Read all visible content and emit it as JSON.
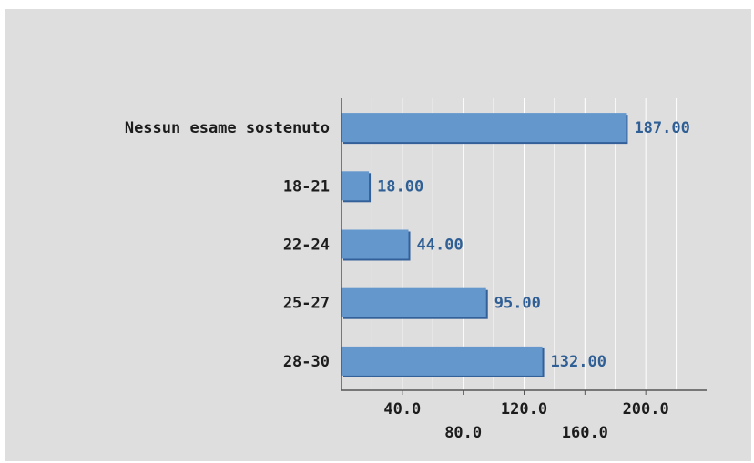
{
  "colors": {
    "background": "#dedede",
    "bar_fill": "#6497cc",
    "bar_shadow": "#34609a",
    "value_label": "#2f5f95",
    "gridline": "#ffffff",
    "axis": "#555555"
  },
  "chart_data": {
    "type": "bar",
    "orientation": "horizontal",
    "title": "",
    "xlabel": "",
    "ylabel": "",
    "categories": [
      "Nessun esame sostenuto",
      "18-21",
      "22-24",
      "25-27",
      "28-30"
    ],
    "values": [
      187,
      18,
      44,
      95,
      132
    ],
    "value_labels": [
      "187.00",
      "18.00",
      "44.00",
      "95.00",
      "132.00"
    ],
    "xlim": [
      0,
      240
    ],
    "x_ticks": [
      20,
      40,
      60,
      80,
      100,
      120,
      140,
      160,
      180,
      200,
      220
    ],
    "x_tick_labels": [
      {
        "value": 40,
        "label": "40.0",
        "row": 0
      },
      {
        "value": 80,
        "label": "80.0",
        "row": 1
      },
      {
        "value": 120,
        "label": "120.0",
        "row": 0
      },
      {
        "value": 160,
        "label": "160.0",
        "row": 1
      },
      {
        "value": 200,
        "label": "200.0",
        "row": 0
      }
    ],
    "grid": "vertical",
    "legend": "none"
  }
}
